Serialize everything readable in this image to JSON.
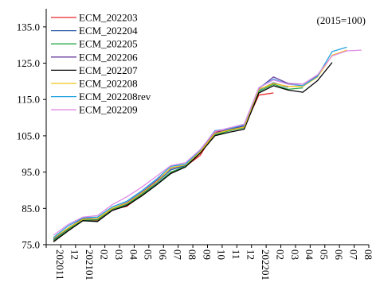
{
  "chart_data": {
    "type": "line",
    "note": "(2015=100)",
    "ylim": [
      75,
      140
    ],
    "yticks": [
      75.0,
      85.0,
      95.0,
      105.0,
      115.0,
      125.0,
      135.0
    ],
    "ytick_labels": [
      "75.0",
      "85.0",
      "95.0",
      "105.0",
      "115.0",
      "125.0",
      "135.0"
    ],
    "x_labels": [
      "202011",
      "12",
      "202101",
      "02",
      "03",
      "04",
      "05",
      "06",
      "07",
      "08",
      "09",
      "10",
      "11",
      "12",
      "202201",
      "02",
      "03",
      "04",
      "05",
      "06",
      "07",
      "08"
    ],
    "grid": false,
    "legend_position": "top-left",
    "series": [
      {
        "name": "ECM_202203",
        "color": "#e8262b",
        "values": [
          76.0,
          79.0,
          81.8,
          81.6,
          84.6,
          85.6,
          88.6,
          91.6,
          94.8,
          96.6,
          99.6,
          106.2,
          106.4,
          107.4,
          116.2,
          116.8,
          null,
          null,
          null,
          null,
          null,
          null
        ]
      },
      {
        "name": "ECM_202204",
        "color": "#2a5ea8",
        "values": [
          76.4,
          79.4,
          82.0,
          82.0,
          84.8,
          86.2,
          89.0,
          92.0,
          95.6,
          96.8,
          100.4,
          105.4,
          106.6,
          107.6,
          117.6,
          119.6,
          118.4,
          null,
          null,
          null,
          null,
          null
        ]
      },
      {
        "name": "ECM_202205",
        "color": "#26a84a",
        "values": [
          76.2,
          79.2,
          81.8,
          81.8,
          84.8,
          86.0,
          88.8,
          91.6,
          95.0,
          96.6,
          100.6,
          105.2,
          106.4,
          107.2,
          117.2,
          119.2,
          117.8,
          118.2,
          null,
          null,
          null,
          null
        ]
      },
      {
        "name": "ECM_202206",
        "color": "#6a3da0",
        "values": [
          76.6,
          79.6,
          82.2,
          82.2,
          85.0,
          86.6,
          89.4,
          92.6,
          96.0,
          97.0,
          100.8,
          105.8,
          106.8,
          107.8,
          118.0,
          121.2,
          119.4,
          119.2,
          121.6,
          null,
          null,
          null
        ]
      },
      {
        "name": "ECM_202207",
        "color": "#000000",
        "values": [
          75.8,
          78.8,
          81.6,
          81.4,
          84.4,
          85.8,
          88.4,
          91.4,
          94.6,
          96.4,
          100.2,
          105.0,
          106.0,
          106.8,
          116.8,
          118.8,
          117.6,
          117.0,
          120.2,
          125.2,
          null,
          null
        ]
      },
      {
        "name": "ECM_202208",
        "color": "#f2c318",
        "values": [
          76.8,
          79.6,
          82.0,
          82.2,
          85.0,
          86.4,
          89.2,
          92.2,
          96.2,
          97.0,
          100.6,
          105.6,
          106.6,
          107.4,
          117.8,
          119.4,
          118.6,
          118.6,
          121.2,
          127.2,
          128.6,
          null
        ]
      },
      {
        "name": "ECM_202208rev",
        "color": "#21a3e0",
        "values": [
          77.0,
          80.2,
          82.4,
          82.6,
          85.4,
          87.0,
          89.8,
          93.0,
          96.6,
          97.2,
          101.0,
          106.4,
          107.0,
          108.0,
          118.2,
          120.6,
          119.2,
          118.8,
          121.4,
          128.2,
          129.4,
          null
        ]
      },
      {
        "name": "ECM_202209",
        "color": "#e08ae6",
        "values": [
          77.6,
          80.6,
          82.6,
          83.0,
          86.0,
          88.2,
          90.8,
          93.8,
          96.8,
          97.6,
          101.2,
          106.2,
          107.2,
          108.2,
          118.2,
          120.4,
          119.2,
          119.2,
          121.8,
          127.0,
          128.4,
          128.6
        ]
      }
    ]
  }
}
